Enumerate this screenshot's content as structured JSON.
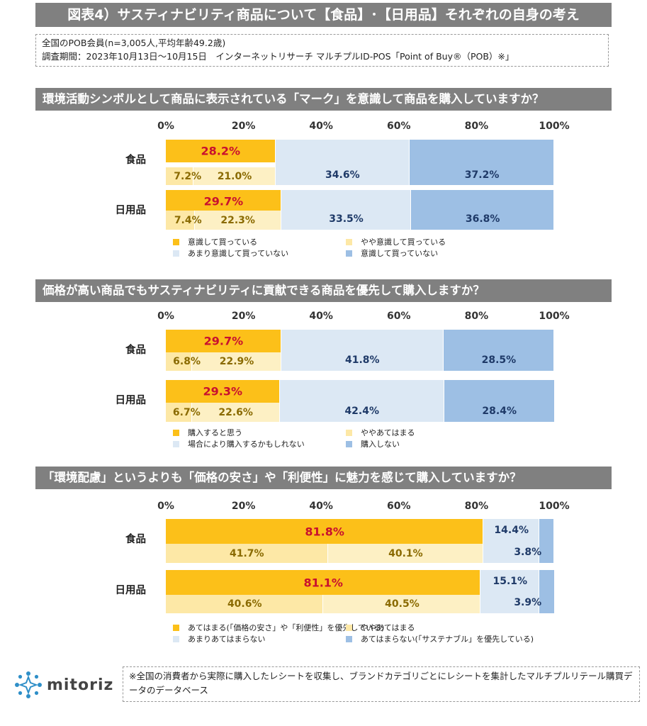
{
  "title": "図表4）サスティナビリティ商品について【食品】･【日用品】それぞれの自身の考え",
  "info": {
    "line1": "全国のPOB会員(n=3,005人,平均年齢49.2歳)",
    "line2": "調査期間：2023年10月13日～10月15日　インターネットリサーチ マルチプルID-POS「Point of Buy®（POB）※」"
  },
  "colors": {
    "dark": "#fcc019",
    "light": "#fde8a6",
    "pale": "#dce8f4",
    "blue": "#9dbfe4",
    "red": "#c8102e",
    "text_blue": "#1f3a68",
    "brown": "#8a6a00"
  },
  "chart_data": [
    {
      "type": "bar",
      "title": "環境活動シンボルとして商品に表示されている「マーク」を意識して商品を購入していますか？",
      "ticks": [
        "0%",
        "20%",
        "40%",
        "60%",
        "80%",
        "100%"
      ],
      "xlim": [
        0,
        100
      ],
      "categories": [
        "食品",
        "日用品"
      ],
      "combined_label_values": [
        "28.2%",
        "29.7%"
      ],
      "series": [
        {
          "name": "意識して買っている",
          "values": [
            7.2,
            7.4
          ],
          "labels": [
            "7.2%",
            "7.4%"
          ]
        },
        {
          "name": "やや意識して買っている",
          "values": [
            21.0,
            22.3
          ],
          "labels": [
            "21.0%",
            "22.3%"
          ]
        },
        {
          "name": "あまり意識して買っていない",
          "values": [
            34.6,
            33.5
          ],
          "labels": [
            "34.6%",
            "33.5%"
          ]
        },
        {
          "name": "意識して買っていない",
          "values": [
            37.2,
            36.8
          ],
          "labels": [
            "37.2%",
            "36.8%"
          ]
        }
      ]
    },
    {
      "type": "bar",
      "title": "価格が高い商品でもサスティナビリティに貢献できる商品を優先して購入しますか？",
      "ticks": [
        "0%",
        "20%",
        "40%",
        "60%",
        "80%",
        "100%"
      ],
      "xlim": [
        0,
        100
      ],
      "categories": [
        "食品",
        "日用品"
      ],
      "combined_label_values": [
        "29.7%",
        "29.3%"
      ],
      "series": [
        {
          "name": "購入すると思う",
          "values": [
            6.8,
            6.7
          ],
          "labels": [
            "6.8%",
            "6.7%"
          ]
        },
        {
          "name": "ややあてはまる",
          "values": [
            22.9,
            22.6
          ],
          "labels": [
            "22.9%",
            "22.6%"
          ]
        },
        {
          "name": "場合により購入するかもしれない",
          "values": [
            41.8,
            42.4
          ],
          "labels": [
            "41.8%",
            "42.4%"
          ]
        },
        {
          "name": "購入しない",
          "values": [
            28.5,
            28.4
          ],
          "labels": [
            "28.5%",
            "28.4%"
          ]
        }
      ]
    },
    {
      "type": "bar",
      "title": "「環境配慮」というよりも「価格の安さ」や「利便性」に魅力を感じて購入していますか？",
      "ticks": [
        "0%",
        "20%",
        "40%",
        "60%",
        "80%",
        "100%"
      ],
      "xlim": [
        0,
        100
      ],
      "categories": [
        "食品",
        "日用品"
      ],
      "combined_label_values": [
        "81.8%",
        "81.1%"
      ],
      "combined_right_values": [
        "14.4%",
        "15.1%"
      ],
      "series": [
        {
          "name": "あてはまる(「価格の安さ」や「利便性」を優先している)",
          "values": [
            41.7,
            40.6
          ],
          "labels": [
            "41.7%",
            "40.6%"
          ]
        },
        {
          "name": "ややあてはまる",
          "values": [
            40.1,
            40.5
          ],
          "labels": [
            "40.1%",
            "40.5%"
          ]
        },
        {
          "name": "あまりあてはまらない",
          "values": [
            14.4,
            15.1
          ],
          "labels": [
            "",
            ""
          ]
        },
        {
          "name": "あてはまらない(「サステナブル」を優先している)",
          "values": [
            3.8,
            3.9
          ],
          "labels": [
            "3.8%",
            "3.9%"
          ]
        }
      ]
    }
  ],
  "footer": {
    "logo_text": "mitoriz",
    "note": "※全国の消費者から実際に購入したレシートを収集し、ブランドカテゴリごとにレシートを集計したマルチプルリテール購買データのデータベース"
  }
}
